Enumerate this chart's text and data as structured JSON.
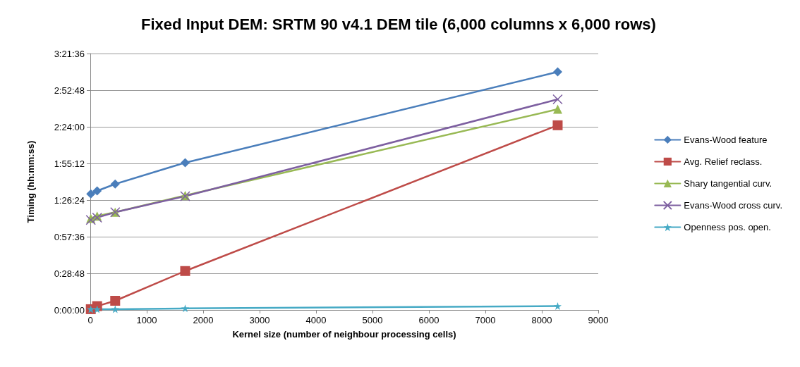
{
  "chart_data": {
    "type": "line",
    "title": "Fixed Input DEM: SRTM 90 v4.1 DEM tile (6,000 columns x 6,000 rows)",
    "xlabel": "Kernel size (number of neighbour processing cells)",
    "ylabel": "Timing (hh:mm:ss)",
    "x": [
      9,
      121,
      441,
      1681,
      8281
    ],
    "series": [
      {
        "name": "Evans-Wood feature",
        "color": "#4a7ebb",
        "marker": "diamond",
        "values": [
          1.52,
          1.56,
          1.65,
          1.93,
          3.12
        ]
      },
      {
        "name": "Avg. Relief reclass.",
        "color": "#be4b48",
        "marker": "square",
        "values": [
          0.01,
          0.05,
          0.12,
          0.51,
          2.42
        ]
      },
      {
        "name": "Shary tangential curv.",
        "color": "#98b954",
        "marker": "triangle",
        "values": [
          1.2,
          1.23,
          1.28,
          1.5,
          2.63
        ]
      },
      {
        "name": "Evans-Wood cross curv.",
        "color": "#7d5fa0",
        "marker": "cross",
        "values": [
          1.18,
          1.21,
          1.28,
          1.49,
          2.76
        ]
      },
      {
        "name": "Openness pos. open.",
        "color": "#46aac5",
        "marker": "star",
        "values": [
          0.01,
          0.01,
          0.01,
          0.02,
          0.05
        ]
      }
    ],
    "xlim": [
      0,
      9000
    ],
    "xticks": [
      0,
      1000,
      2000,
      3000,
      4000,
      5000,
      6000,
      7000,
      8000,
      9000
    ],
    "ylim": [
      0,
      3.36
    ],
    "yticks": [
      {
        "value": 0,
        "label": "0:00:00"
      },
      {
        "value": 0.48,
        "label": "0:28:48"
      },
      {
        "value": 0.96,
        "label": "0:57:36"
      },
      {
        "value": 1.44,
        "label": "1:26:24"
      },
      {
        "value": 1.92,
        "label": "1:55:12"
      },
      {
        "value": 2.4,
        "label": "2:24:00"
      },
      {
        "value": 2.88,
        "label": "2:52:48"
      },
      {
        "value": 3.36,
        "label": "3:21:36"
      }
    ],
    "grid": "y",
    "legend": "right",
    "line_style": "solid"
  }
}
